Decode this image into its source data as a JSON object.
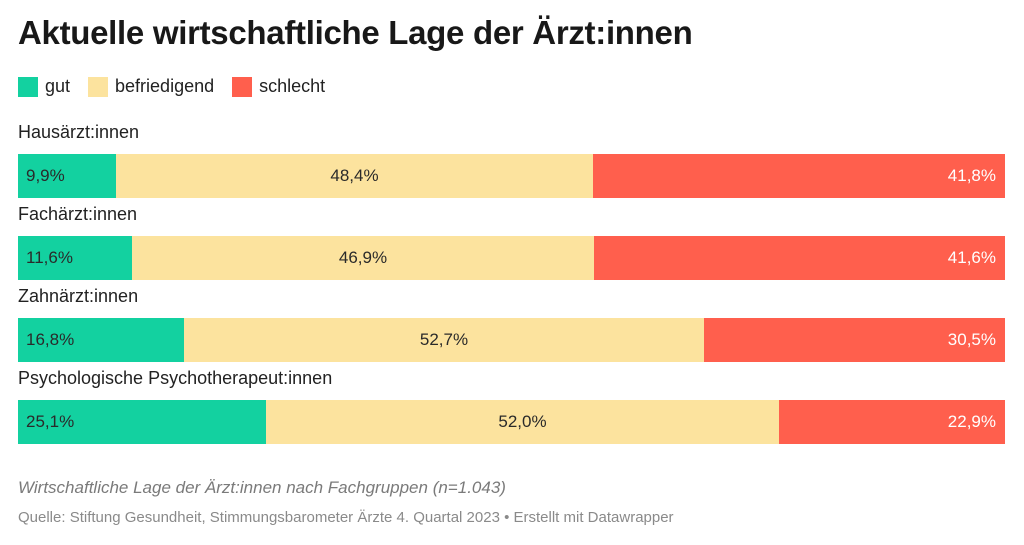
{
  "chart_data": {
    "type": "bar",
    "orientation": "horizontal",
    "stacked": true,
    "normalized_percent": true,
    "title": "Aktuelle wirtschaftliche Lage der Ärzt:innen",
    "subtitle": "Wirtschaftliche Lage der Ärzt:innen nach Fachgruppen (n=1.043)",
    "source": "Quelle: Stiftung Gesundheit, Stimmungsbarometer Ärzte 4. Quartal 2023 • Erstellt mit Datawrapper",
    "legend_position": "top-left",
    "grid": false,
    "categories": [
      "Hausärzt:innen",
      "Fachärzt:innen",
      "Zahnärzt:innen",
      "Psychologische Psychotherapeut:innen"
    ],
    "series": [
      {
        "name": "gut",
        "color": "#13d1a0",
        "values": [
          9.9,
          11.6,
          16.8,
          25.1
        ],
        "labels": [
          "9,9%",
          "11,6%",
          "16,8%",
          "25,1%"
        ]
      },
      {
        "name": "befriedigend",
        "color": "#fce39e",
        "values": [
          48.4,
          46.9,
          52.7,
          52.0
        ],
        "labels": [
          "48,4%",
          "46,9%",
          "52,7%",
          "52,0%"
        ]
      },
      {
        "name": "schlecht",
        "color": "#ff5f4d",
        "values": [
          41.8,
          41.6,
          30.5,
          22.9
        ],
        "labels": [
          "41,8%",
          "41,6%",
          "30,5%",
          "22,9%"
        ]
      }
    ]
  }
}
